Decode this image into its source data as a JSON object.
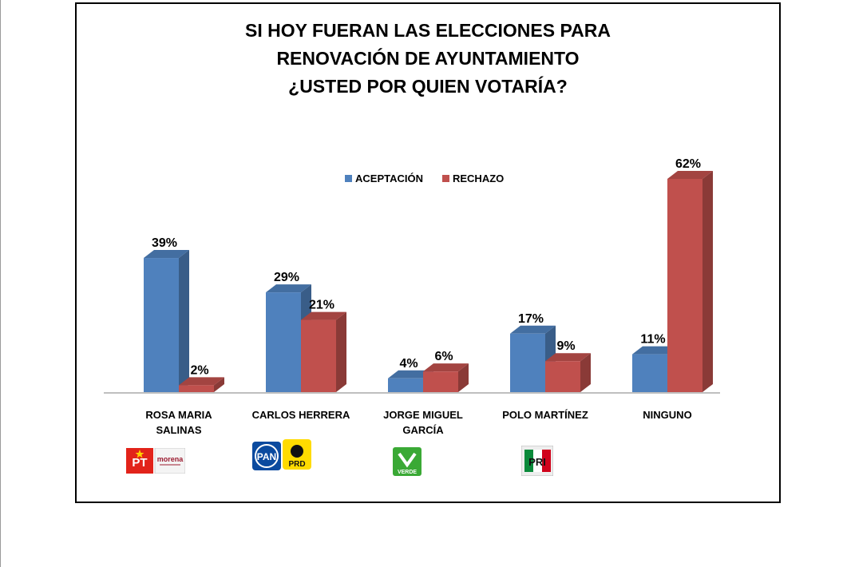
{
  "chart_data": {
    "type": "bar",
    "title_lines": [
      "SI HOY FUERAN LAS ELECCIONES PARA",
      "RENOVACIÓN DE AYUNTAMIENTO",
      "¿USTED POR QUIEN VOTARÍA?"
    ],
    "categories": [
      [
        "ROSA MARIA",
        "SALINAS"
      ],
      [
        "CARLOS HERRERA"
      ],
      [
        "JORGE MIGUEL",
        "GARCÍA"
      ],
      [
        "POLO MARTÍNEZ"
      ],
      [
        "NINGUNO"
      ]
    ],
    "series": [
      {
        "name": "ACEPTACIÓN",
        "color": "#4f81bd",
        "values": [
          39,
          29,
          4,
          17,
          11
        ],
        "labels": [
          "39%",
          "29%",
          "4%",
          "17%",
          "11%"
        ]
      },
      {
        "name": "RECHAZO",
        "color": "#c0504d",
        "values": [
          2,
          21,
          6,
          9,
          62
        ],
        "labels": [
          "2%",
          "21%",
          "6%",
          "9%",
          "62%"
        ]
      }
    ],
    "ylim": [
      0,
      62
    ],
    "grid": false,
    "legend_position": "top-center",
    "party_logos": [
      {
        "category": "ROSA MARIA SALINAS",
        "marks": [
          "PT",
          "morena"
        ]
      },
      {
        "category": "CARLOS HERRERA",
        "marks": [
          "PAN",
          "PRD"
        ]
      },
      {
        "category": "JORGE MIGUEL GARCÍA",
        "marks": [
          "VERDE"
        ]
      },
      {
        "category": "POLO MARTÍNEZ",
        "marks": [
          "PRI"
        ]
      },
      {
        "category": "NINGUNO",
        "marks": []
      }
    ]
  }
}
